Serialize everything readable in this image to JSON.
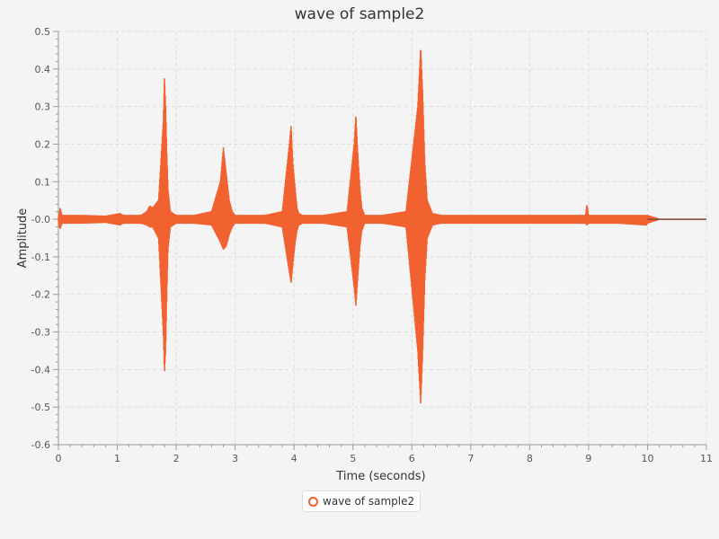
{
  "chart_data": {
    "type": "line",
    "title": "wave of sample2",
    "xlabel": "Time (seconds)",
    "ylabel": "Amplitude",
    "xlim": [
      0,
      11
    ],
    "ylim": [
      -0.6,
      0.5
    ],
    "x_ticks": [
      0,
      1,
      2,
      3,
      4,
      5,
      6,
      7,
      8,
      9,
      10,
      11
    ],
    "x_tick_labels": [
      "0",
      "1",
      "2",
      "3",
      "4",
      "5",
      "6",
      "7",
      "8",
      "9",
      "10",
      "11"
    ],
    "y_ticks": [
      0.5,
      0.4,
      0.3,
      0.2,
      0.1,
      0.0,
      -0.1,
      -0.2,
      -0.3,
      -0.4,
      -0.5,
      -0.6
    ],
    "y_tick_labels": [
      "0.5",
      "0.4",
      "0.3",
      "0.2",
      "0.1",
      "-0.0",
      "-0.1",
      "-0.2",
      "-0.3",
      "-0.4",
      "-0.5",
      "-0.6"
    ],
    "grid": true,
    "legend_position": "bottom-center",
    "series": [
      {
        "name": "wave of sample2",
        "color": "#f26130",
        "x": [
          0,
          0.03,
          0.06,
          0.2,
          0.4,
          0.8,
          1.05,
          1.1,
          1.4,
          1.5,
          1.55,
          1.6,
          1.7,
          1.78,
          1.8,
          1.82,
          1.84,
          1.86,
          1.9,
          2.0,
          2.3,
          2.6,
          2.75,
          2.8,
          2.85,
          2.9,
          2.95,
          3.0,
          3.1,
          3.5,
          3.8,
          3.92,
          3.95,
          3.98,
          4.02,
          4.05,
          4.08,
          4.15,
          4.5,
          4.9,
          5.02,
          5.05,
          5.08,
          5.12,
          5.15,
          5.2,
          5.5,
          5.9,
          6.1,
          6.15,
          6.18,
          6.22,
          6.26,
          6.35,
          6.5,
          7.0,
          7.5,
          8.0,
          8.5,
          8.95,
          8.97,
          9.0,
          9.5,
          9.98,
          10.0,
          10.2,
          10.5,
          11.0
        ],
        "upper": [
          0.005,
          0.03,
          0.01,
          0.01,
          0.01,
          0.008,
          0.015,
          0.01,
          0.01,
          0.02,
          0.035,
          0.03,
          0.05,
          0.26,
          0.38,
          0.3,
          0.18,
          0.08,
          0.02,
          0.01,
          0.01,
          0.02,
          0.1,
          0.19,
          0.12,
          0.05,
          0.02,
          0.01,
          0.01,
          0.01,
          0.02,
          0.2,
          0.25,
          0.15,
          0.08,
          0.03,
          0.015,
          0.01,
          0.01,
          0.02,
          0.2,
          0.28,
          0.18,
          0.08,
          0.03,
          0.01,
          0.01,
          0.02,
          0.3,
          0.46,
          0.35,
          0.15,
          0.05,
          0.015,
          0.01,
          0.01,
          0.01,
          0.01,
          0.01,
          0.01,
          0.04,
          0.01,
          0.01,
          0.01,
          0.01,
          0.0,
          0.0,
          0.0
        ],
        "lower": [
          -0.01,
          -0.025,
          -0.01,
          -0.01,
          -0.01,
          -0.008,
          -0.015,
          -0.01,
          -0.01,
          -0.015,
          -0.02,
          -0.02,
          -0.05,
          -0.3,
          -0.41,
          -0.35,
          -0.2,
          -0.08,
          -0.02,
          -0.01,
          -0.01,
          -0.015,
          -0.06,
          -0.08,
          -0.07,
          -0.04,
          -0.02,
          -0.01,
          -0.01,
          -0.01,
          -0.02,
          -0.14,
          -0.17,
          -0.12,
          -0.06,
          -0.03,
          -0.015,
          -0.01,
          -0.01,
          -0.02,
          -0.18,
          -0.23,
          -0.16,
          -0.07,
          -0.03,
          -0.01,
          -0.01,
          -0.02,
          -0.35,
          -0.49,
          -0.37,
          -0.16,
          -0.05,
          -0.015,
          -0.01,
          -0.01,
          -0.01,
          -0.01,
          -0.01,
          -0.01,
          -0.015,
          -0.01,
          -0.01,
          -0.015,
          -0.01,
          0.0,
          0.0,
          0.0
        ]
      }
    ]
  }
}
